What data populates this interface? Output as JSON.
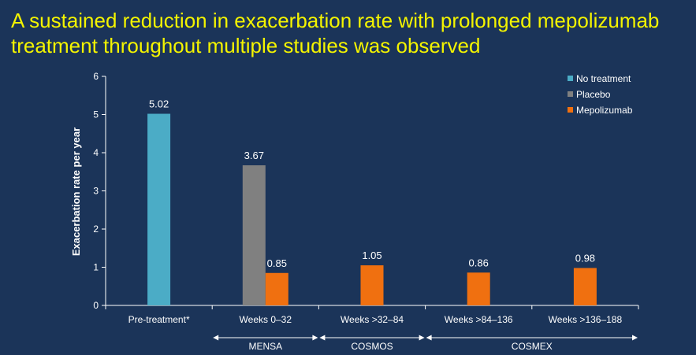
{
  "slide": {
    "title": "A sustained reduction in exacerbation rate with prolonged mepolizumab treatment throughout multiple studies was observed"
  },
  "colors": {
    "background": "#1b3459",
    "title": "#f4f400",
    "No treatment": "#4bacc6",
    "Placebo": "#808080",
    "Mepolizumab": "#f07010"
  },
  "chart_data": {
    "type": "bar",
    "ylabel": "Exacerbation rate per year",
    "xlabel": "",
    "ylim": [
      0,
      6
    ],
    "yticks": [
      0,
      1,
      2,
      3,
      4,
      5,
      6
    ],
    "grid": false,
    "legend_position": "top-right",
    "categories": [
      "Pre-treatment*",
      "Weeks 0–32",
      "Weeks >32–84",
      "Weeks >84–136",
      "Weeks >136–188"
    ],
    "series": [
      {
        "name": "No treatment",
        "values": [
          5.02,
          null,
          null,
          null,
          null
        ],
        "labels": [
          "5.02",
          null,
          null,
          null,
          null
        ]
      },
      {
        "name": "Placebo",
        "values": [
          null,
          3.67,
          null,
          null,
          null
        ],
        "labels": [
          null,
          "3.67",
          null,
          null,
          null
        ]
      },
      {
        "name": "Mepolizumab",
        "values": [
          null,
          0.85,
          1.05,
          0.86,
          0.98
        ],
        "labels": [
          null,
          "0.85",
          "1.05",
          "0.86",
          "0.98"
        ]
      }
    ],
    "study_spans": [
      {
        "label": "MENSA",
        "from": 1,
        "to": 1
      },
      {
        "label": "COSMOS",
        "from": 2,
        "to": 2
      },
      {
        "label": "COSMEX",
        "from": 3,
        "to": 4
      }
    ]
  }
}
